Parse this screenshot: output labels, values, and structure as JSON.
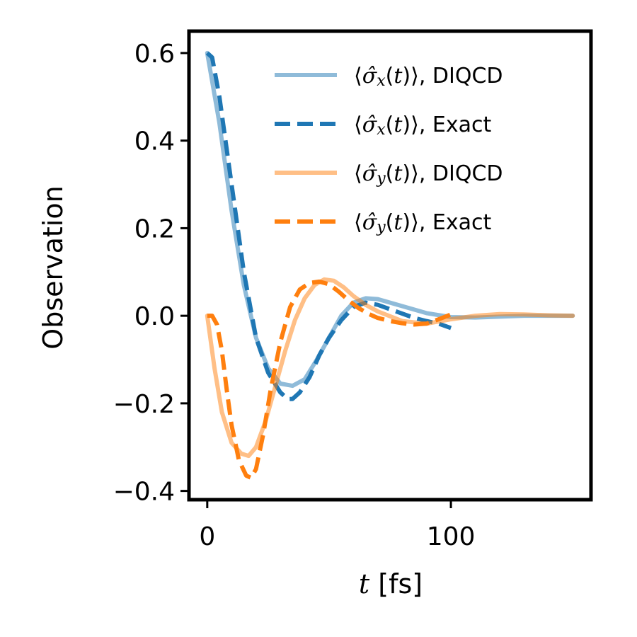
{
  "chart_data": {
    "type": "line",
    "xlabel": {
      "var": "t",
      "unit": "[fs]"
    },
    "ylabel": "Observation",
    "xlim": [
      -7.5,
      157.5
    ],
    "ylim": [
      -0.42,
      0.65
    ],
    "xticks": [
      {
        "value": 0,
        "label": "0"
      },
      {
        "value": 100,
        "label": "100"
      }
    ],
    "yticks": [
      {
        "value": 0.6,
        "label": "0.6"
      },
      {
        "value": 0.4,
        "label": "0.4"
      },
      {
        "value": 0.2,
        "label": "0.2"
      },
      {
        "value": 0.0,
        "label": "0.0"
      },
      {
        "value": -0.2,
        "label": "−0.2"
      },
      {
        "value": -0.4,
        "label": "−0.4"
      }
    ],
    "legend_position": "top-right",
    "series": [
      {
        "name": "⟨σ̂x(t)⟩, DIQCD",
        "legend": {
          "op": "σ̂",
          "sub": "x",
          "suffix": "DIQCD"
        },
        "color": "#1f77b4",
        "alpha": 0.5,
        "dash": "solid",
        "x": [
          0,
          5,
          10,
          15,
          20,
          25,
          30,
          35,
          40,
          45,
          50,
          55,
          60,
          65,
          70,
          80,
          90,
          100,
          110,
          120,
          130,
          140,
          150
        ],
        "y": [
          0.6,
          0.44,
          0.24,
          0.07,
          -0.05,
          -0.12,
          -0.155,
          -0.16,
          -0.145,
          -0.1,
          -0.05,
          0.0,
          0.03,
          0.04,
          0.038,
          0.022,
          0.006,
          -0.003,
          -0.004,
          -0.002,
          0.0,
          0.0,
          0.0
        ]
      },
      {
        "name": "⟨σ̂x(t)⟩, Exact",
        "legend": {
          "op": "σ̂",
          "sub": "x",
          "suffix": "Exact"
        },
        "color": "#1f77b4",
        "alpha": 1.0,
        "dash": "dashed",
        "x": [
          0,
          2,
          5,
          10,
          15,
          20,
          25,
          30,
          33,
          35,
          38,
          42,
          46,
          50,
          55,
          60,
          65,
          70,
          75,
          80,
          85,
          90,
          95,
          100
        ],
        "y": [
          0.6,
          0.59,
          0.5,
          0.3,
          0.1,
          -0.05,
          -0.13,
          -0.175,
          -0.19,
          -0.19,
          -0.175,
          -0.14,
          -0.09,
          -0.05,
          -0.01,
          0.02,
          0.03,
          0.025,
          0.015,
          0.005,
          -0.005,
          -0.012,
          -0.018,
          -0.028
        ]
      },
      {
        "name": "⟨σ̂y(t)⟩, DIQCD",
        "legend": {
          "op": "σ̂",
          "sub": "y",
          "suffix": "DIQCD"
        },
        "color": "#ff7f0e",
        "alpha": 0.5,
        "dash": "solid",
        "x": [
          0,
          3,
          6,
          10,
          14,
          17,
          20,
          24,
          28,
          32,
          36,
          40,
          44,
          48,
          52,
          56,
          60,
          65,
          70,
          80,
          90,
          100,
          110,
          120,
          130,
          140,
          150
        ],
        "y": [
          0.0,
          -0.12,
          -0.22,
          -0.29,
          -0.315,
          -0.32,
          -0.3,
          -0.24,
          -0.16,
          -0.08,
          -0.01,
          0.04,
          0.07,
          0.083,
          0.08,
          0.065,
          0.045,
          0.025,
          0.01,
          -0.012,
          -0.018,
          -0.008,
          0.0,
          0.004,
          0.003,
          0.001,
          0.0
        ]
      },
      {
        "name": "⟨σ̂y(t)⟩, Exact",
        "legend": {
          "op": "σ̂",
          "sub": "y",
          "suffix": "Exact"
        },
        "color": "#ff7f0e",
        "alpha": 1.0,
        "dash": "dashed",
        "x": [
          0,
          2,
          4,
          6,
          8,
          10,
          13,
          16,
          18,
          20,
          23,
          26,
          30,
          34,
          38,
          42,
          46,
          50,
          54,
          58,
          62,
          66,
          70,
          75,
          80,
          85,
          90,
          95,
          100
        ],
        "y": [
          0.0,
          0.0,
          -0.02,
          -0.08,
          -0.17,
          -0.25,
          -0.33,
          -0.365,
          -0.37,
          -0.35,
          -0.27,
          -0.17,
          -0.06,
          0.02,
          0.06,
          0.075,
          0.078,
          0.072,
          0.055,
          0.035,
          0.018,
          0.005,
          -0.005,
          -0.012,
          -0.017,
          -0.02,
          -0.018,
          -0.008,
          0.003
        ]
      }
    ]
  }
}
